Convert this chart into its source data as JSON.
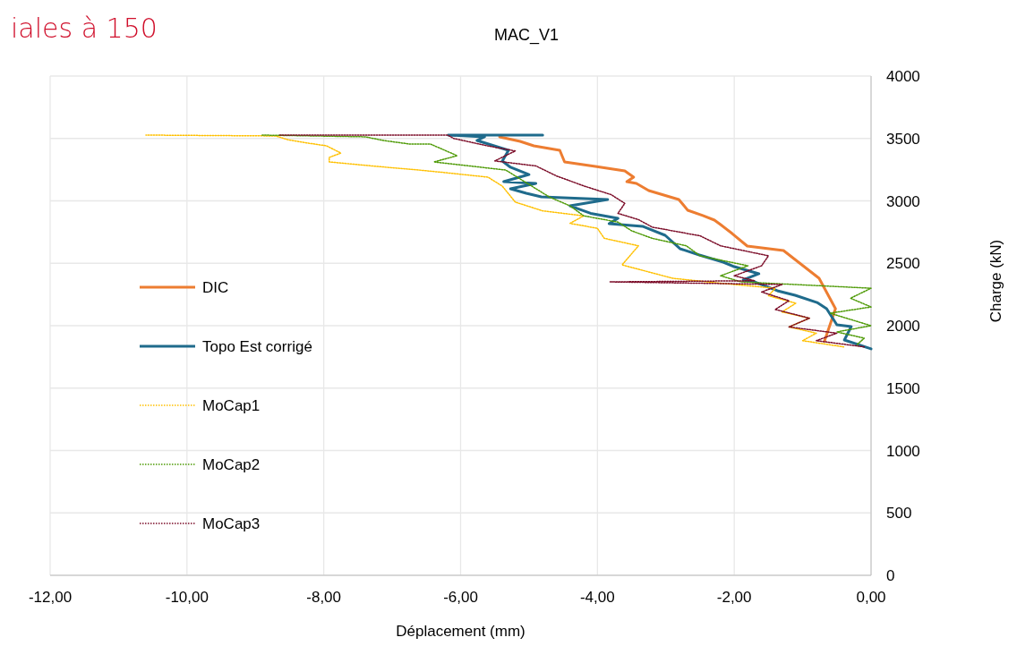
{
  "chart_data": {
    "type": "line",
    "title": "MAC_V1",
    "xlabel": "Déplacement (mm)",
    "ylabel": "Charge (kN)",
    "annotations": [
      "iales à 150"
    ],
    "xlim": [
      -12,
      0
    ],
    "xticks": [
      {
        "value": -12,
        "label": "-12,00"
      },
      {
        "value": -10,
        "label": "-10,00"
      },
      {
        "value": -8,
        "label": "-8,00"
      },
      {
        "value": -6,
        "label": "-6,00"
      },
      {
        "value": -4,
        "label": "-4,00"
      },
      {
        "value": -2,
        "label": "-2,00"
      },
      {
        "value": 0,
        "label": "0,00"
      }
    ],
    "ylim": [
      0,
      4000
    ],
    "yticks": [
      0,
      500,
      1000,
      1500,
      2000,
      2500,
      3000,
      3500,
      4000
    ],
    "grid": true,
    "legend": "left",
    "series": [
      {
        "name": "DIC",
        "color": "#ed7d31",
        "line_style": "solid",
        "x": [
          -0.68,
          -0.52,
          -0.76,
          -1.28,
          -1.81,
          -2.03,
          -2.2,
          -2.29,
          -2.46,
          -2.68,
          -2.81,
          -3.25,
          -3.43,
          -3.57,
          -3.47,
          -3.6,
          -4.03,
          -4.48,
          -4.55,
          -4.93,
          -5.13,
          -5.43
        ],
        "values": [
          1878,
          2136,
          2380,
          2602,
          2638,
          2738,
          2810,
          2846,
          2882,
          2925,
          3011,
          3082,
          3140,
          3154,
          3190,
          3240,
          3276,
          3312,
          3405,
          3441,
          3477,
          3513
        ]
      },
      {
        "name": "Topo Est corrigé",
        "color": "#1f6b8c",
        "line_style": "solid",
        "x": [
          0,
          -0.39,
          -0.29,
          -0.5,
          -0.65,
          -0.79,
          -1.11,
          -1.37,
          -1.7,
          -1.87,
          -1.64,
          -2,
          -2.16,
          -2.51,
          -2.79,
          -3.01,
          -3.34,
          -3.83,
          -3.7,
          -4.1,
          -4.4,
          -3.85,
          -4.82,
          -5.04,
          -5.27,
          -4.9,
          -5.37,
          -5,
          -5.27,
          -5.39,
          -5.3,
          -5.76,
          -5.65,
          -6.18,
          -4.8
        ],
        "values": [
          1814,
          1885,
          1993,
          2007,
          2136,
          2186,
          2244,
          2280,
          2351,
          2366,
          2416,
          2473,
          2509,
          2566,
          2616,
          2724,
          2796,
          2817,
          2860,
          2900,
          2960,
          3011,
          3032,
          3061,
          3097,
          3140,
          3154,
          3211,
          3269,
          3319,
          3405,
          3484,
          3513,
          3527,
          3527
        ]
      },
      {
        "name": "MoCap1",
        "color": "#ffc000",
        "line_style": "dotted",
        "x": [
          -0.4,
          -1,
          -0.8,
          -1.2,
          -0.9,
          -1.3,
          -1.1,
          -1.5,
          -1.4,
          -2.2,
          -2.9,
          -3.64,
          -3.4,
          -3.9,
          -4,
          -4.4,
          -4.2,
          -4.8,
          -5.2,
          -5.39,
          -5.6,
          -6.22,
          -6.61,
          -7.22,
          -7.92,
          -7.92,
          -7.75,
          -7.96,
          -8.22,
          -8.53,
          -8.7,
          -10.6
        ],
        "values": [
          1830,
          1880,
          1940,
          1990,
          2060,
          2110,
          2180,
          2240,
          2300,
          2340,
          2380,
          2487,
          2640,
          2700,
          2780,
          2820,
          2880,
          2920,
          2990,
          3118,
          3190,
          3226,
          3247,
          3276,
          3312,
          3348,
          3383,
          3441,
          3462,
          3491,
          3520,
          3527
        ]
      },
      {
        "name": "MoCap2",
        "color": "#4e9a06",
        "line_style": "dotted",
        "x": [
          -0.2,
          -0.1,
          -0.5,
          0,
          -0.6,
          0,
          -0.3,
          0,
          -1.9,
          -2.2,
          -1.8,
          -2.5,
          -2.7,
          -3.2,
          -3.5,
          -3.7,
          -4.2,
          -4.4,
          -4.7,
          -5.34,
          -6.39,
          -6.05,
          -6.44,
          -6.74,
          -7.13,
          -7.39,
          -8.9
        ],
        "values": [
          1850,
          1900,
          1950,
          2000,
          2100,
          2150,
          2220,
          2300,
          2351,
          2400,
          2480,
          2560,
          2640,
          2700,
          2760,
          2830,
          2880,
          2960,
          3030,
          3247,
          3312,
          3362,
          3455,
          3455,
          3484,
          3513,
          3527
        ]
      },
      {
        "name": "MoCap3",
        "color": "#7b0c28",
        "line_style": "dotted",
        "x": [
          -0.1,
          -0.8,
          -0.5,
          -1.2,
          -0.9,
          -1.4,
          -1.2,
          -1.6,
          -1.3,
          -3.82,
          -1.7,
          -2,
          -1.6,
          -1.5,
          -2.2,
          -2.5,
          -3.2,
          -3.4,
          -3.7,
          -3.6,
          -3.8,
          -4.2,
          -4.6,
          -4.9,
          -5.5,
          -5.2,
          -5.6,
          -6.1,
          -6.19,
          -8.66
        ],
        "values": [
          1830,
          1880,
          1940,
          1990,
          2060,
          2130,
          2200,
          2270,
          2330,
          2351,
          2360,
          2400,
          2480,
          2560,
          2640,
          2720,
          2790,
          2850,
          2900,
          2980,
          3050,
          3120,
          3200,
          3280,
          3320,
          3400,
          3440,
          3500,
          3527,
          3527
        ]
      }
    ]
  }
}
